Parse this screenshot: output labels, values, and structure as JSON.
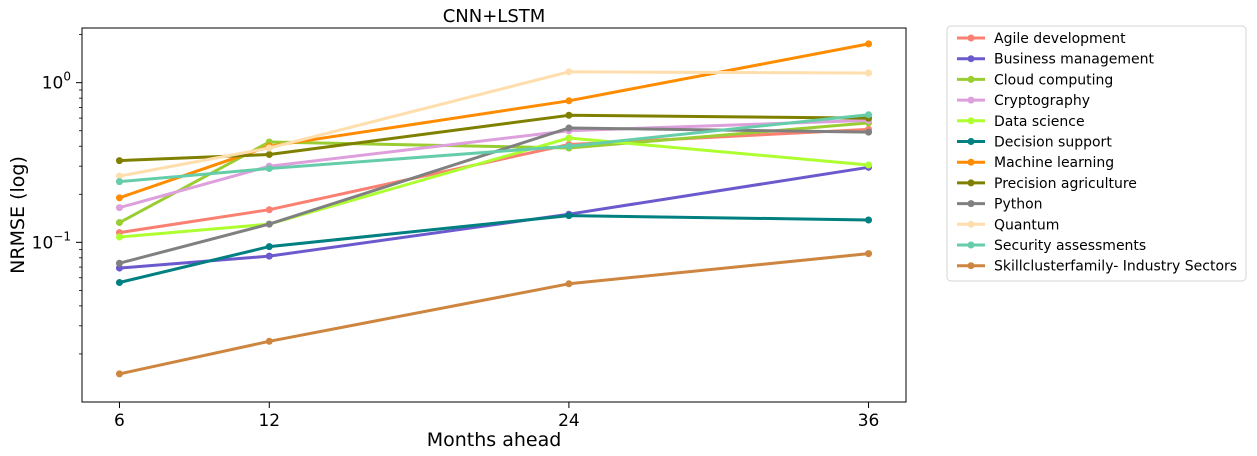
{
  "chart_data": {
    "type": "line",
    "title": "CNN+LSTM",
    "xlabel": "Months ahead",
    "ylabel": "NRMSE (log)",
    "x": [
      6,
      12,
      24,
      36
    ],
    "xlim": [
      4.5,
      37.5
    ],
    "y_scale": "log",
    "ylim": [
      0.01,
      2.2
    ],
    "y_ticks": [
      {
        "value": 1.0,
        "label": "10",
        "exp": "0"
      },
      {
        "value": 0.1,
        "label": "10",
        "exp": "−1"
      }
    ],
    "grid": false,
    "legend_position": "outside-right",
    "series": [
      {
        "name": "Agile development",
        "color": "#fa8072",
        "values": [
          0.115,
          0.16,
          0.41,
          0.51
        ]
      },
      {
        "name": "Business management",
        "color": "#6a5acd",
        "values": [
          0.069,
          0.082,
          0.15,
          0.295
        ]
      },
      {
        "name": "Cloud computing",
        "color": "#9acd32",
        "values": [
          0.133,
          0.425,
          0.39,
          0.56
        ]
      },
      {
        "name": "Cryptography",
        "color": "#dda0dd",
        "values": [
          0.165,
          0.3,
          0.5,
          0.58
        ]
      },
      {
        "name": "Data science",
        "color": "#adff2f",
        "values": [
          0.108,
          0.13,
          0.45,
          0.305
        ]
      },
      {
        "name": "Decision support",
        "color": "#008080",
        "values": [
          0.056,
          0.094,
          0.147,
          0.138
        ]
      },
      {
        "name": "Machine learning",
        "color": "#ff8c00",
        "values": [
          0.19,
          0.4,
          0.77,
          1.75
        ]
      },
      {
        "name": "Precision agriculture",
        "color": "#808000",
        "values": [
          0.325,
          0.355,
          0.625,
          0.6
        ]
      },
      {
        "name": "Python",
        "color": "#808080",
        "values": [
          0.074,
          0.13,
          0.52,
          0.49
        ]
      },
      {
        "name": "Quantum",
        "color": "#ffdead",
        "values": [
          0.26,
          0.39,
          1.17,
          1.15
        ]
      },
      {
        "name": "Security assessments",
        "color": "#66cdaa",
        "values": [
          0.24,
          0.29,
          0.4,
          0.63
        ]
      },
      {
        "name": "Skillclusterfamily- Industry Sectors",
        "color": "#cd853f",
        "values": [
          0.015,
          0.024,
          0.055,
          0.085
        ]
      }
    ]
  }
}
